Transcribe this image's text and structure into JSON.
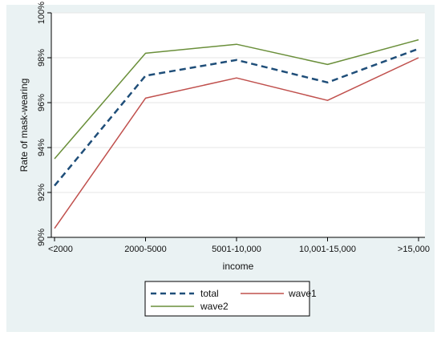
{
  "chart_data": {
    "type": "line",
    "title": "",
    "xlabel": "income",
    "ylabel": "Rate of mask-wearing",
    "categories": [
      "<2000",
      "2000-5000",
      "5001-10,000",
      "10,001-15,000",
      ">15,000"
    ],
    "ylim": [
      0.9,
      1.0
    ],
    "yticks": [
      "90%",
      "92%",
      "94%",
      "96%",
      "98%",
      "100%"
    ],
    "grid": true,
    "legend_position": "bottom",
    "series": [
      {
        "name": "total",
        "values": [
          0.923,
          0.972,
          0.979,
          0.969,
          0.984
        ],
        "color": "#1f4e79",
        "style": "dashed"
      },
      {
        "name": "wave1",
        "values": [
          0.904,
          0.962,
          0.971,
          0.961,
          0.98
        ],
        "color": "#c0504d",
        "style": "solid"
      },
      {
        "name": "wave2",
        "values": [
          0.935,
          0.982,
          0.986,
          0.977,
          0.988
        ],
        "color": "#6a8f3a",
        "style": "solid"
      }
    ]
  }
}
